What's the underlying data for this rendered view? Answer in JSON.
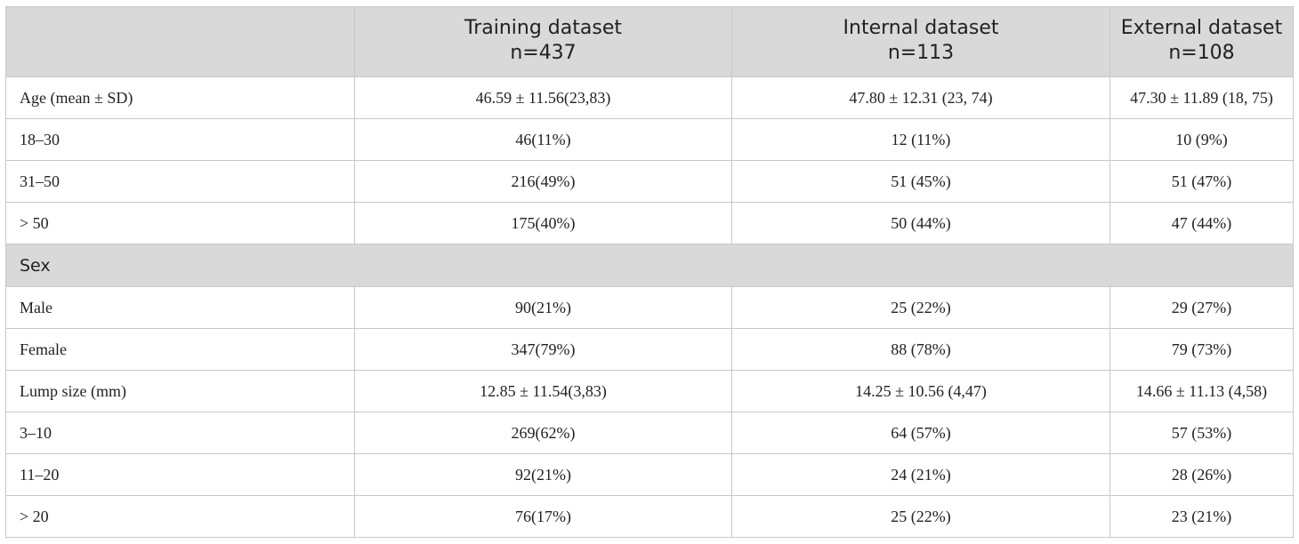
{
  "table": {
    "header": {
      "corner": "",
      "columns": [
        {
          "title": "Training dataset",
          "n": "n=437"
        },
        {
          "title": "Internal dataset",
          "n": "n=113"
        },
        {
          "title": "External dataset",
          "n": "n=108"
        }
      ]
    },
    "rows": [
      {
        "label": "Age (mean ± SD)",
        "values": [
          "46.59 ± 11.56(23,83)",
          "47.80 ± 12.31 (23, 74)",
          "47.30 ± 11.89 (18, 75)"
        ]
      },
      {
        "label": "18–30",
        "values": [
          "46(11%)",
          "12 (11%)",
          "10 (9%)"
        ]
      },
      {
        "label": "31–50",
        "values": [
          "216(49%)",
          "51 (45%)",
          "51 (47%)"
        ]
      },
      {
        "label": "> 50",
        "values": [
          "175(40%)",
          "50 (44%)",
          "47 (44%)"
        ]
      },
      {
        "section": "Sex"
      },
      {
        "label": "Male",
        "values": [
          "90(21%)",
          "25 (22%)",
          "29 (27%)"
        ]
      },
      {
        "label": "Female",
        "values": [
          "347(79%)",
          "88 (78%)",
          "79 (73%)"
        ]
      },
      {
        "label": "Lump size (mm)",
        "values": [
          "12.85 ± 11.54(3,83)",
          "14.25 ± 10.56 (4,47)",
          "14.66 ± 11.13 (4,58)"
        ]
      },
      {
        "label": "3–10",
        "values": [
          "269(62%)",
          "64 (57%)",
          "57 (53%)"
        ]
      },
      {
        "label": "11–20",
        "values": [
          "92(21%)",
          "24 (21%)",
          "28 (26%)"
        ]
      },
      {
        "label": "> 20",
        "values": [
          "76(17%)",
          "25 (22%)",
          "23 (21%)"
        ]
      }
    ]
  }
}
